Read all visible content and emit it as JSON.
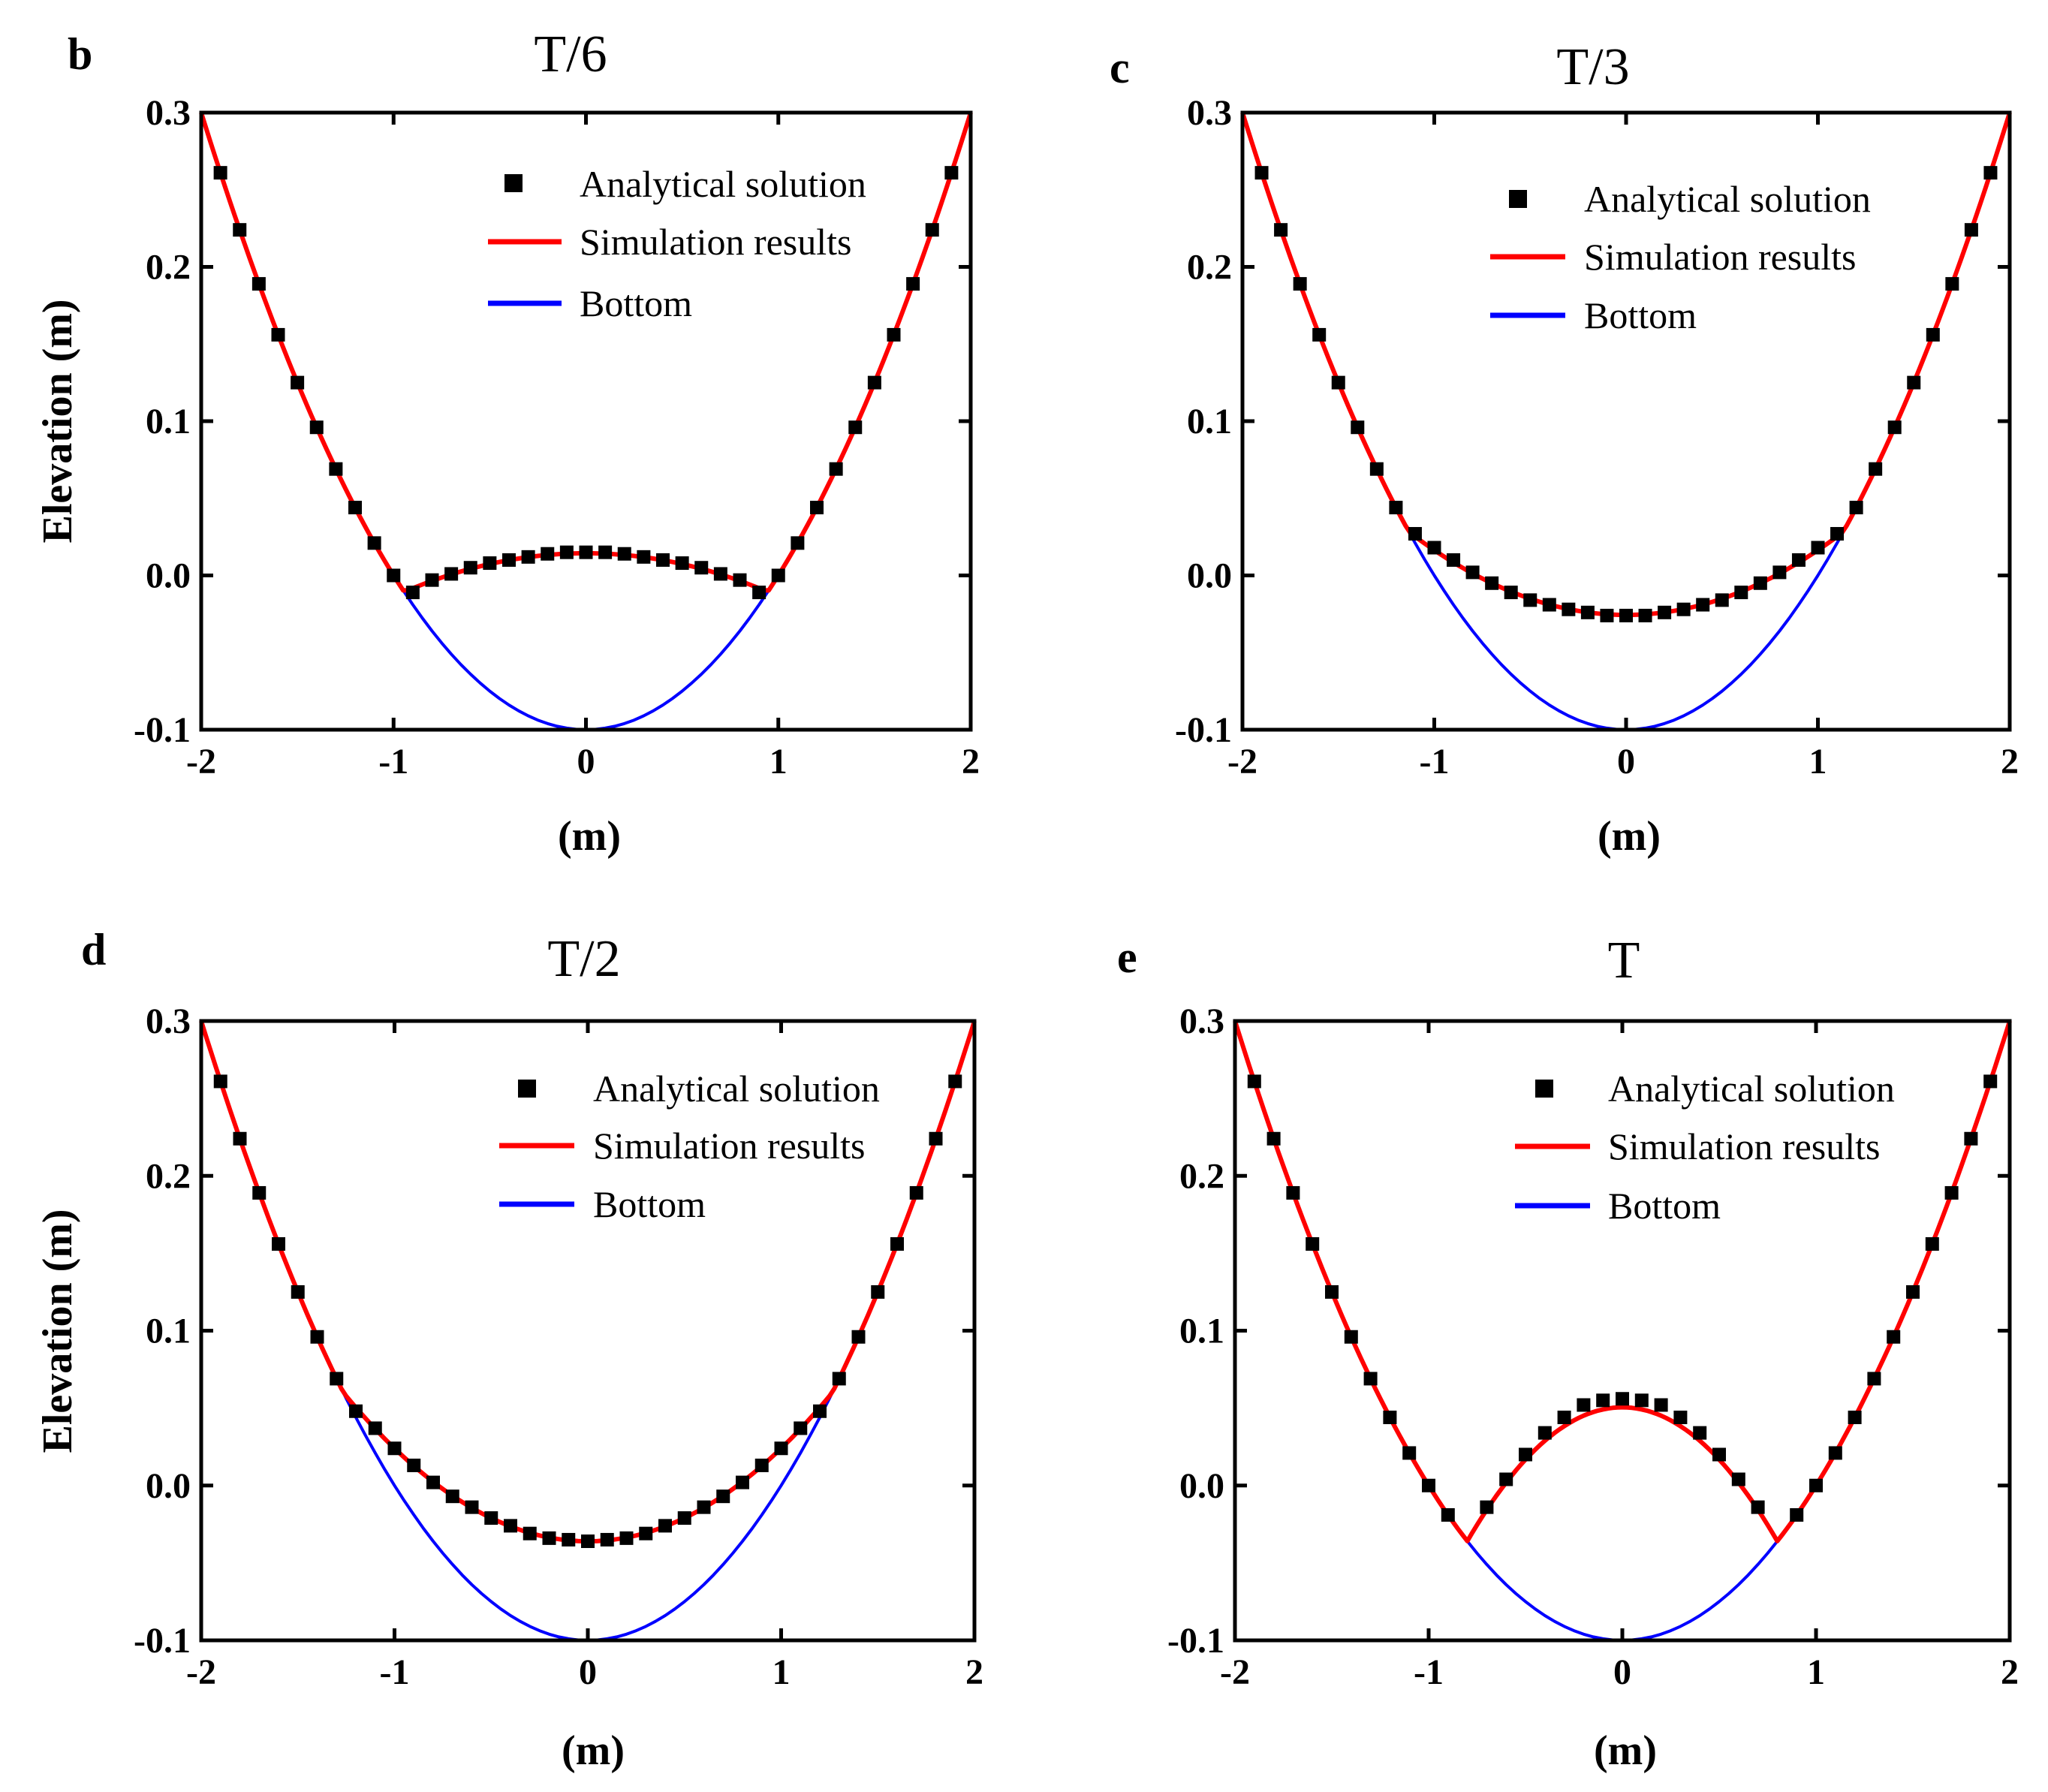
{
  "legend": {
    "analytical": "Analytical solution",
    "simulation": "Simulation results",
    "bottom": "Bottom"
  },
  "colors": {
    "simulation": "#ff0000",
    "bottom": "#0000ff",
    "analytical": "#000000"
  },
  "chart_data": [
    {
      "type": "line",
      "panel_label": "b",
      "title": "T/6",
      "xlabel": "(m)",
      "ylabel": "Elevation (m)",
      "xlim": [
        -2,
        2
      ],
      "ylim": [
        -0.1,
        0.3
      ],
      "xticks": [
        -2,
        -1,
        0,
        1,
        2
      ],
      "xtick_labels": [
        "-2",
        "-1",
        "0",
        "1",
        "2"
      ],
      "yticks": [
        -0.1,
        0.0,
        0.1,
        0.2,
        0.3
      ],
      "ytick_labels": [
        "-0.1",
        "0.0",
        "0.1",
        "0.2",
        "0.3"
      ],
      "legend_position": "top-right",
      "series": [
        {
          "name": "Bottom",
          "kind": "line",
          "color": "#0000ff",
          "formula": "0.1*x^2 - 0.1",
          "points": 81
        },
        {
          "name": "Simulation results",
          "kind": "line",
          "color": "#ff0000",
          "formula": "max(bottom, 0.0144 - 0.028*x^2)",
          "points": 161
        },
        {
          "name": "Analytical solution",
          "kind": "markers",
          "color": "#000000",
          "x": [
            -1.9,
            -1.8,
            -1.7,
            -1.6,
            -1.5,
            -1.4,
            -1.3,
            -1.2,
            -1.1,
            -1.0,
            -0.9,
            -0.8,
            -0.7,
            -0.6,
            -0.5,
            -0.4,
            -0.3,
            -0.2,
            -0.1,
            0.0,
            0.1,
            0.2,
            0.3,
            0.4,
            0.5,
            0.6,
            0.7,
            0.8,
            0.9,
            1.0,
            1.1,
            1.2,
            1.3,
            1.4,
            1.5,
            1.6,
            1.7,
            1.8,
            1.9
          ],
          "y": [
            0.261,
            0.224,
            0.189,
            0.156,
            0.125,
            0.096,
            0.069,
            0.044,
            0.021,
            0.0,
            -0.011,
            -0.003,
            0.001,
            0.005,
            0.008,
            0.01,
            0.012,
            0.014,
            0.015,
            0.015,
            0.015,
            0.014,
            0.012,
            0.01,
            0.008,
            0.005,
            0.001,
            -0.003,
            -0.011,
            0.0,
            0.021,
            0.044,
            0.069,
            0.096,
            0.125,
            0.156,
            0.189,
            0.224,
            0.261
          ]
        }
      ]
    },
    {
      "type": "line",
      "panel_label": "c",
      "title": "T/3",
      "xlabel": "(m)",
      "ylabel": "",
      "xlim": [
        -2,
        2
      ],
      "ylim": [
        -0.1,
        0.3
      ],
      "xticks": [
        -2,
        -1,
        0,
        1,
        2
      ],
      "xtick_labels": [
        "-2",
        "-1",
        "0",
        "1",
        "2"
      ],
      "yticks": [
        -0.1,
        0.0,
        0.1,
        0.2,
        0.3
      ],
      "ytick_labels": [
        "-0.1",
        "0.0",
        "0.1",
        "0.2",
        "0.3"
      ],
      "legend_position": "top-right",
      "series": [
        {
          "name": "Bottom",
          "kind": "line",
          "color": "#0000ff",
          "formula": "0.1*x^2 - 0.1",
          "points": 81
        },
        {
          "name": "Simulation results",
          "kind": "line",
          "color": "#ff0000",
          "formula": "max(bottom, 0.042*x^2 - 0.0256)",
          "points": 161
        },
        {
          "name": "Analytical solution",
          "kind": "markers",
          "color": "#000000",
          "x": [
            -1.9,
            -1.8,
            -1.7,
            -1.6,
            -1.5,
            -1.4,
            -1.3,
            -1.2,
            -1.1,
            -1.0,
            -0.9,
            -0.8,
            -0.7,
            -0.6,
            -0.5,
            -0.4,
            -0.3,
            -0.2,
            -0.1,
            0.0,
            0.1,
            0.2,
            0.3,
            0.4,
            0.5,
            0.6,
            0.7,
            0.8,
            0.9,
            1.0,
            1.1,
            1.2,
            1.3,
            1.4,
            1.5,
            1.6,
            1.7,
            1.8,
            1.9
          ],
          "y": [
            0.261,
            0.224,
            0.189,
            0.156,
            0.125,
            0.096,
            0.069,
            0.044,
            0.027,
            0.018,
            0.01,
            0.002,
            -0.005,
            -0.011,
            -0.016,
            -0.019,
            -0.022,
            -0.024,
            -0.026,
            -0.026,
            -0.026,
            -0.024,
            -0.022,
            -0.019,
            -0.016,
            -0.011,
            -0.005,
            0.002,
            0.01,
            0.018,
            0.027,
            0.044,
            0.069,
            0.096,
            0.125,
            0.156,
            0.189,
            0.224,
            0.261
          ]
        }
      ]
    },
    {
      "type": "line",
      "panel_label": "d",
      "title": "T/2",
      "xlabel": "(m)",
      "ylabel": "Elevation (m)",
      "xlim": [
        -2,
        2
      ],
      "ylim": [
        -0.1,
        0.3
      ],
      "xticks": [
        -2,
        -1,
        0,
        1,
        2
      ],
      "xtick_labels": [
        "-2",
        "-1",
        "0",
        "1",
        "2"
      ],
      "yticks": [
        -0.1,
        0.0,
        0.1,
        0.2,
        0.3
      ],
      "ytick_labels": [
        "-0.1",
        "0.0",
        "0.1",
        "0.2",
        "0.3"
      ],
      "legend_position": "top-right",
      "series": [
        {
          "name": "Bottom",
          "kind": "line",
          "color": "#0000ff",
          "formula": "0.1*x^2 - 0.1",
          "points": 81
        },
        {
          "name": "Simulation results",
          "kind": "line",
          "color": "#ff0000",
          "formula": "max(bottom, 0.06*x^2 - 0.036)",
          "points": 161
        },
        {
          "name": "Analytical solution",
          "kind": "markers",
          "color": "#000000",
          "x": [
            -1.9,
            -1.8,
            -1.7,
            -1.6,
            -1.5,
            -1.4,
            -1.3,
            -1.2,
            -1.1,
            -1.0,
            -0.9,
            -0.8,
            -0.7,
            -0.6,
            -0.5,
            -0.4,
            -0.3,
            -0.2,
            -0.1,
            0.0,
            0.1,
            0.2,
            0.3,
            0.4,
            0.5,
            0.6,
            0.7,
            0.8,
            0.9,
            1.0,
            1.1,
            1.2,
            1.3,
            1.4,
            1.5,
            1.6,
            1.7,
            1.8,
            1.9
          ],
          "y": [
            0.261,
            0.224,
            0.189,
            0.156,
            0.125,
            0.096,
            0.069,
            0.048,
            0.037,
            0.024,
            0.013,
            0.002,
            -0.007,
            -0.014,
            -0.021,
            -0.026,
            -0.031,
            -0.034,
            -0.035,
            -0.036,
            -0.035,
            -0.034,
            -0.031,
            -0.026,
            -0.021,
            -0.014,
            -0.007,
            0.002,
            0.013,
            0.024,
            0.037,
            0.048,
            0.069,
            0.096,
            0.125,
            0.156,
            0.189,
            0.224,
            0.261
          ]
        }
      ]
    },
    {
      "type": "line",
      "panel_label": "e",
      "title": "T",
      "xlabel": "(m)",
      "ylabel": "",
      "xlim": [
        -2,
        2
      ],
      "ylim": [
        -0.1,
        0.3
      ],
      "xticks": [
        -2,
        -1,
        0,
        1,
        2
      ],
      "xtick_labels": [
        "-2",
        "-1",
        "0",
        "1",
        "2"
      ],
      "yticks": [
        -0.1,
        0.0,
        0.1,
        0.2,
        0.3
      ],
      "ytick_labels": [
        "-0.1",
        "0.0",
        "0.1",
        "0.2",
        "0.3"
      ],
      "legend_position": "top-right",
      "series": [
        {
          "name": "Bottom",
          "kind": "line",
          "color": "#0000ff",
          "formula": "0.1*x^2 - 0.1",
          "points": 81
        },
        {
          "name": "Simulation results",
          "kind": "line",
          "color": "#ff0000",
          "formula": "max(bottom, 0.0505 - 0.135*x^2)",
          "points": 161
        },
        {
          "name": "Analytical solution",
          "kind": "markers",
          "color": "#000000",
          "x": [
            -1.9,
            -1.8,
            -1.7,
            -1.6,
            -1.5,
            -1.4,
            -1.3,
            -1.2,
            -1.1,
            -1.0,
            -0.9,
            -0.7,
            -0.6,
            -0.5,
            -0.4,
            -0.3,
            -0.2,
            -0.1,
            0.0,
            0.1,
            0.2,
            0.3,
            0.4,
            0.5,
            0.6,
            0.7,
            0.9,
            1.0,
            1.1,
            1.2,
            1.3,
            1.4,
            1.5,
            1.6,
            1.7,
            1.8,
            1.9
          ],
          "y": [
            0.261,
            0.224,
            0.189,
            0.156,
            0.125,
            0.096,
            0.069,
            0.044,
            0.021,
            0.0,
            -0.019,
            -0.014,
            0.004,
            0.02,
            0.034,
            0.044,
            0.052,
            0.055,
            0.056,
            0.055,
            0.052,
            0.044,
            0.034,
            0.02,
            0.004,
            -0.014,
            -0.019,
            0.0,
            0.021,
            0.044,
            0.069,
            0.096,
            0.125,
            0.156,
            0.189,
            0.224,
            0.261
          ]
        }
      ]
    }
  ]
}
